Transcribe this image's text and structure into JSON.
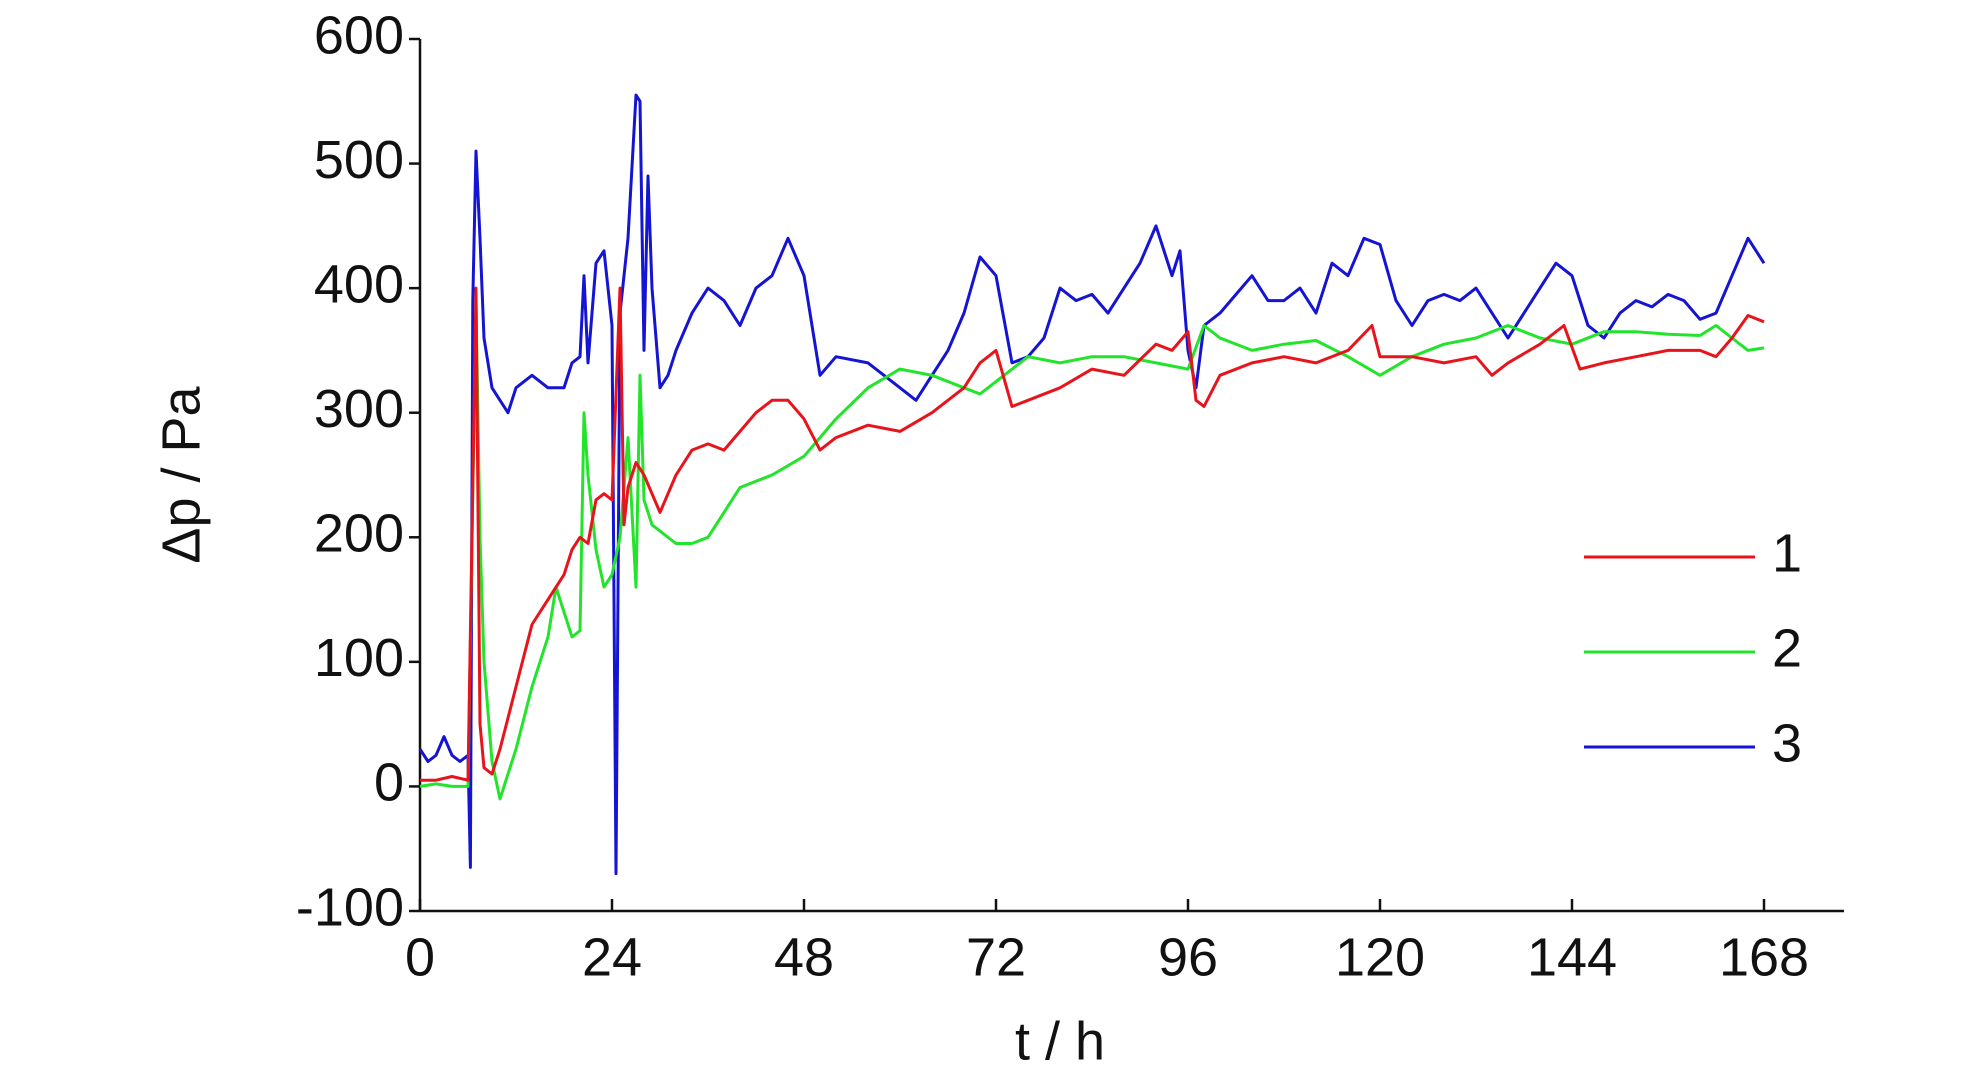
{
  "chart_data": {
    "type": "line",
    "xlabel": "t / h",
    "ylabel": "Δp / Pa",
    "xlim": [
      0,
      178
    ],
    "ylim": [
      -100,
      600
    ],
    "xticks": [
      0,
      24,
      48,
      72,
      96,
      120,
      144,
      168
    ],
    "yticks": [
      -100,
      0,
      100,
      200,
      300,
      400,
      500,
      600
    ],
    "grid": false,
    "legend": "right",
    "series": [
      {
        "name": "1",
        "color": "#e8141c",
        "x": [
          0,
          2,
          4,
          6,
          7,
          7.5,
          8,
          9,
          10,
          12,
          14,
          16,
          18,
          19,
          20,
          21,
          22,
          23,
          24,
          25,
          25.5,
          26,
          27,
          28,
          30,
          32,
          34,
          36,
          38,
          40,
          42,
          44,
          46,
          48,
          50,
          52,
          56,
          60,
          64,
          68,
          70,
          72,
          74,
          76,
          80,
          84,
          88,
          92,
          94,
          96,
          97,
          98,
          100,
          104,
          108,
          112,
          116,
          119,
          120,
          124,
          128,
          132,
          134,
          136,
          140,
          143,
          145,
          148,
          152,
          156,
          160,
          162,
          164,
          166,
          168
        ],
        "values": [
          5,
          5,
          8,
          5,
          400,
          50,
          15,
          10,
          30,
          80,
          130,
          150,
          170,
          190,
          200,
          195,
          230,
          235,
          230,
          400,
          210,
          240,
          260,
          250,
          220,
          250,
          270,
          275,
          270,
          285,
          300,
          310,
          310,
          295,
          270,
          280,
          290,
          285,
          300,
          320,
          340,
          350,
          305,
          310,
          320,
          335,
          330,
          355,
          350,
          365,
          310,
          305,
          330,
          340,
          345,
          340,
          350,
          370,
          345,
          345,
          340,
          345,
          330,
          340,
          355,
          370,
          335,
          340,
          345,
          350,
          350,
          345,
          360,
          378,
          373
        ]
      },
      {
        "name": "2",
        "color": "#22e42a",
        "x": [
          0,
          2,
          4,
          6,
          7,
          7.5,
          8,
          9,
          10,
          12,
          14,
          16,
          17,
          18,
          19,
          20,
          20.5,
          21,
          22,
          23,
          24,
          25,
          26,
          27,
          27.5,
          28,
          29,
          30,
          32,
          34,
          36,
          38,
          40,
          44,
          48,
          52,
          56,
          60,
          64,
          68,
          70,
          72,
          76,
          80,
          84,
          88,
          92,
          96,
          98,
          100,
          104,
          108,
          112,
          116,
          120,
          124,
          128,
          132,
          136,
          140,
          144,
          148,
          152,
          156,
          160,
          162,
          164,
          166,
          168
        ],
        "values": [
          0,
          2,
          0,
          0,
          390,
          200,
          100,
          20,
          -10,
          30,
          80,
          120,
          160,
          140,
          120,
          125,
          300,
          250,
          190,
          160,
          170,
          200,
          280,
          160,
          330,
          230,
          210,
          205,
          195,
          195,
          200,
          220,
          240,
          250,
          265,
          295,
          320,
          335,
          330,
          320,
          315,
          325,
          345,
          340,
          345,
          345,
          340,
          335,
          370,
          360,
          350,
          355,
          358,
          345,
          330,
          345,
          355,
          360,
          370,
          360,
          355,
          365,
          365,
          363,
          362,
          370,
          360,
          350,
          352
        ]
      },
      {
        "name": "3",
        "color": "#1414d2",
        "x": [
          0,
          1,
          2,
          3,
          4,
          5,
          6,
          6.3,
          6.6,
          7,
          7.5,
          8,
          9,
          10,
          11,
          12,
          14,
          16,
          18,
          19,
          20,
          20.5,
          21,
          22,
          23,
          24,
          24.5,
          25,
          26,
          27,
          27.5,
          28,
          28.5,
          29,
          30,
          31,
          32,
          34,
          36,
          38,
          40,
          42,
          44,
          46,
          48,
          50,
          52,
          56,
          60,
          62,
          64,
          66,
          68,
          70,
          72,
          74,
          76,
          78,
          80,
          82,
          84,
          86,
          88,
          90,
          92,
          94,
          95,
          96,
          97,
          98,
          100,
          102,
          104,
          106,
          108,
          110,
          112,
          114,
          116,
          118,
          120,
          122,
          124,
          126,
          128,
          130,
          132,
          134,
          136,
          138,
          140,
          142,
          144,
          146,
          148,
          150,
          152,
          154,
          156,
          158,
          160,
          162,
          164,
          166,
          168
        ],
        "values": [
          30,
          20,
          25,
          40,
          25,
          20,
          25,
          -65,
          390,
          510,
          440,
          360,
          320,
          310,
          300,
          320,
          330,
          320,
          320,
          340,
          345,
          410,
          340,
          420,
          430,
          370,
          -70,
          380,
          440,
          555,
          550,
          350,
          490,
          400,
          320,
          330,
          350,
          380,
          400,
          390,
          370,
          400,
          410,
          440,
          410,
          330,
          345,
          340,
          320,
          310,
          330,
          350,
          380,
          425,
          410,
          340,
          345,
          360,
          400,
          390,
          395,
          380,
          400,
          420,
          450,
          410,
          430,
          350,
          320,
          370,
          380,
          395,
          410,
          390,
          390,
          400,
          380,
          420,
          410,
          440,
          435,
          390,
          370,
          390,
          395,
          390,
          400,
          380,
          360,
          380,
          400,
          420,
          410,
          370,
          360,
          380,
          390,
          385,
          395,
          390,
          375,
          380,
          410,
          440,
          420
        ]
      }
    ]
  }
}
